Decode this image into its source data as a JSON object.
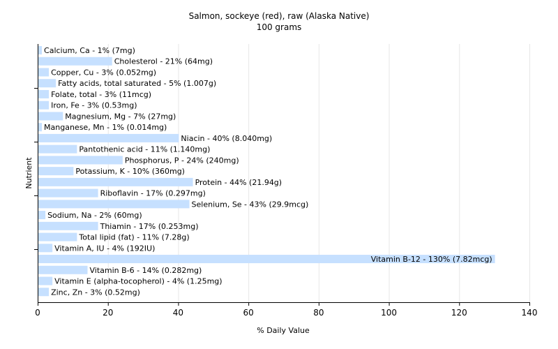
{
  "chart_data": {
    "type": "bar",
    "orientation": "horizontal",
    "title": "Salmon, sockeye (red), raw (Alaska Native)",
    "subtitle": "100 grams",
    "xlabel": "% Daily Value",
    "ylabel": "Nutrient",
    "xlim": [
      0,
      140
    ],
    "xticks": [
      0,
      20,
      40,
      60,
      80,
      100,
      120,
      140
    ],
    "grid": true,
    "bar_color": "#c6e0ff",
    "grid_color": "#e6e6e6",
    "categories": [
      "Calcium, Ca",
      "Cholesterol",
      "Copper, Cu",
      "Fatty acids, total saturated",
      "Folate, total",
      "Iron, Fe",
      "Magnesium, Mg",
      "Manganese, Mn",
      "Niacin",
      "Pantothenic acid",
      "Phosphorus, P",
      "Potassium, K",
      "Protein",
      "Riboflavin",
      "Selenium, Se",
      "Sodium, Na",
      "Thiamin",
      "Total lipid (fat)",
      "Vitamin A, IU",
      "Vitamin B-12",
      "Vitamin B-6",
      "Vitamin E (alpha-tocopherol)",
      "Zinc, Zn"
    ],
    "values": [
      1,
      21,
      3,
      5,
      3,
      3,
      7,
      1,
      40,
      11,
      24,
      10,
      44,
      17,
      43,
      2,
      17,
      11,
      4,
      130,
      14,
      4,
      3
    ],
    "labels": [
      "Calcium, Ca - 1% (7mg)",
      "Cholesterol - 21% (64mg)",
      "Copper, Cu - 3% (0.052mg)",
      "Fatty acids, total saturated - 5% (1.007g)",
      "Folate, total - 3% (11mcg)",
      "Iron, Fe - 3% (0.53mg)",
      "Magnesium, Mg - 7% (27mg)",
      "Manganese, Mn - 1% (0.014mg)",
      "Niacin - 40% (8.040mg)",
      "Pantothenic acid - 11% (1.140mg)",
      "Phosphorus, P - 24% (240mg)",
      "Potassium, K - 10% (360mg)",
      "Protein - 44% (21.94g)",
      "Riboflavin - 17% (0.297mg)",
      "Selenium, Se - 43% (29.9mcg)",
      "Sodium, Na - 2% (60mg)",
      "Thiamin - 17% (0.253mg)",
      "Total lipid (fat) - 11% (7.28g)",
      "Vitamin A, IU - 4% (192IU)",
      "Vitamin B-12 - 130% (7.82mcg)",
      "Vitamin B-6 - 14% (0.282mg)",
      "Vitamin E (alpha-tocopherol) - 4% (1.25mg)",
      "Zinc, Zn - 3% (0.52mg)"
    ]
  }
}
